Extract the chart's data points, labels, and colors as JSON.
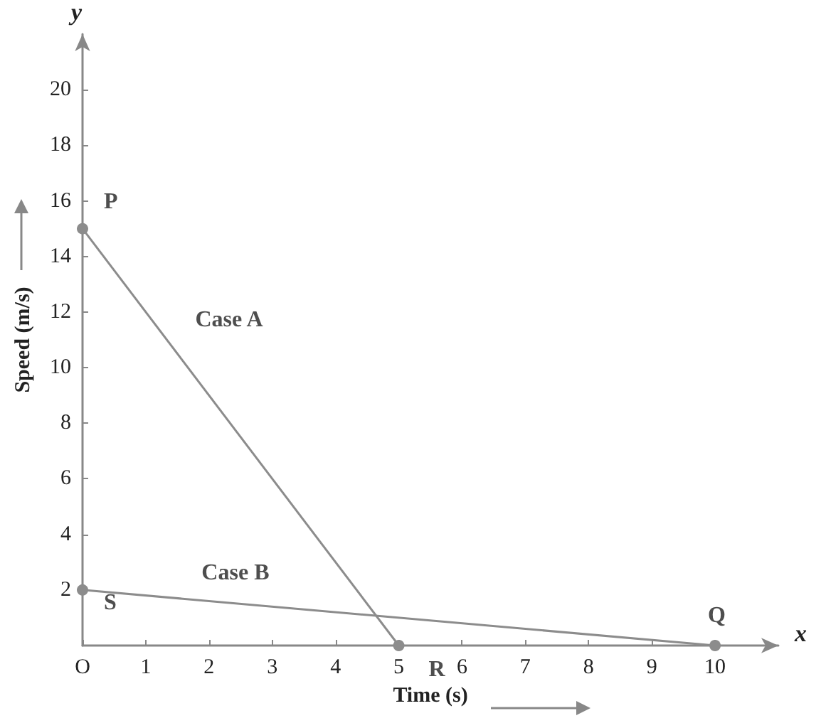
{
  "chart_data": {
    "type": "line",
    "xlabel": "Time (s)",
    "ylabel": "Speed (m/s)",
    "xlim": [
      0,
      11
    ],
    "ylim": [
      0,
      22
    ],
    "xticks": [
      {
        "value": 0,
        "label": "O"
      },
      1,
      2,
      3,
      4,
      5,
      6,
      7,
      8,
      9,
      10
    ],
    "yticks": [
      2,
      4,
      6,
      8,
      10,
      12,
      14,
      16,
      18,
      20
    ],
    "series": [
      {
        "name": "Case A",
        "color": "#8c8c8c",
        "x": [
          0,
          5
        ],
        "values": [
          15,
          0
        ]
      },
      {
        "name": "Case B",
        "color": "#8c8c8c",
        "x": [
          0,
          10
        ],
        "values": [
          2,
          0
        ]
      }
    ],
    "marker": "circle",
    "grid": false,
    "legend": false,
    "annotations": [
      {
        "text": "P",
        "x": 0,
        "y": 15
      },
      {
        "text": "S",
        "x": 0,
        "y": 2
      },
      {
        "text": "R",
        "x": 5,
        "y": 0
      },
      {
        "text": "Q",
        "x": 10,
        "y": 0
      },
      "x",
      "y"
    ]
  }
}
